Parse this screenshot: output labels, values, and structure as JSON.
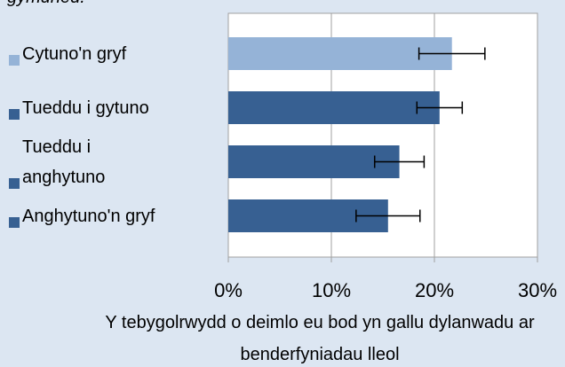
{
  "chart_data": {
    "type": "hbar",
    "title": "gymuned.",
    "categories": [
      "Cytuno'n gryf",
      "Tueddu i gytuno",
      "Tueddu i anghytuno",
      "Anghytuno'n gryf"
    ],
    "values": [
      21.7,
      20.5,
      16.6,
      15.5
    ],
    "errors": [
      3.2,
      2.2,
      2.4,
      3.1
    ],
    "colors": [
      "#95b3d7",
      "#376092",
      "#376092",
      "#376092"
    ],
    "xlabel": "Y tebygolrwydd o deimlo eu bod yn gallu dylanwadu ar benderfyniadau lleol",
    "xlim": [
      0,
      30
    ],
    "xticks": [
      {
        "value": 0,
        "label": "0%"
      },
      {
        "value": 10,
        "label": "10%"
      },
      {
        "value": 20,
        "label": "20%"
      },
      {
        "value": 30,
        "label": "30%"
      }
    ],
    "grid": true
  }
}
